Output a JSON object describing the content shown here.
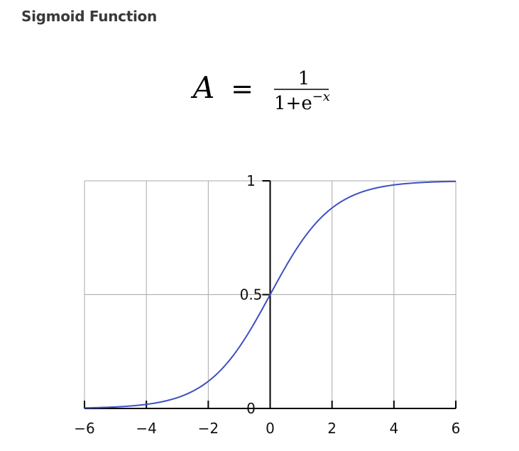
{
  "page": {
    "title": "Sigmoid Function"
  },
  "formula": {
    "lhs": "A",
    "equals": "=",
    "numerator": "1",
    "denominator_base": "1+e",
    "exponent": "−x"
  },
  "chart_data": {
    "type": "line",
    "title": "",
    "xlabel": "",
    "ylabel": "",
    "xlim": [
      -6,
      6
    ],
    "ylim": [
      0,
      1
    ],
    "grid": true,
    "x_ticks": [
      -6,
      -4,
      -2,
      0,
      2,
      4,
      6
    ],
    "x_tick_labels": [
      "−6",
      "−4",
      "−2",
      "0",
      "2",
      "4",
      "6"
    ],
    "y_ticks": [
      0,
      0.5,
      1
    ],
    "y_tick_labels": [
      "0",
      "0.5",
      "1"
    ],
    "series": [
      {
        "color": "#3d4fc3",
        "function": "1/(1+e^-x)",
        "x": [
          -6,
          -5,
          -4,
          -3,
          -2,
          -1,
          0,
          1,
          2,
          3,
          4,
          5,
          6
        ],
        "y": [
          0.0025,
          0.0067,
          0.018,
          0.047,
          0.119,
          0.269,
          0.5,
          0.731,
          0.881,
          0.953,
          0.982,
          0.993,
          0.9975
        ]
      }
    ]
  },
  "colors": {
    "curve": "#3d4fc3",
    "grid": "#a8a8a8",
    "axis": "#000000",
    "title": "#3a3a3a"
  }
}
